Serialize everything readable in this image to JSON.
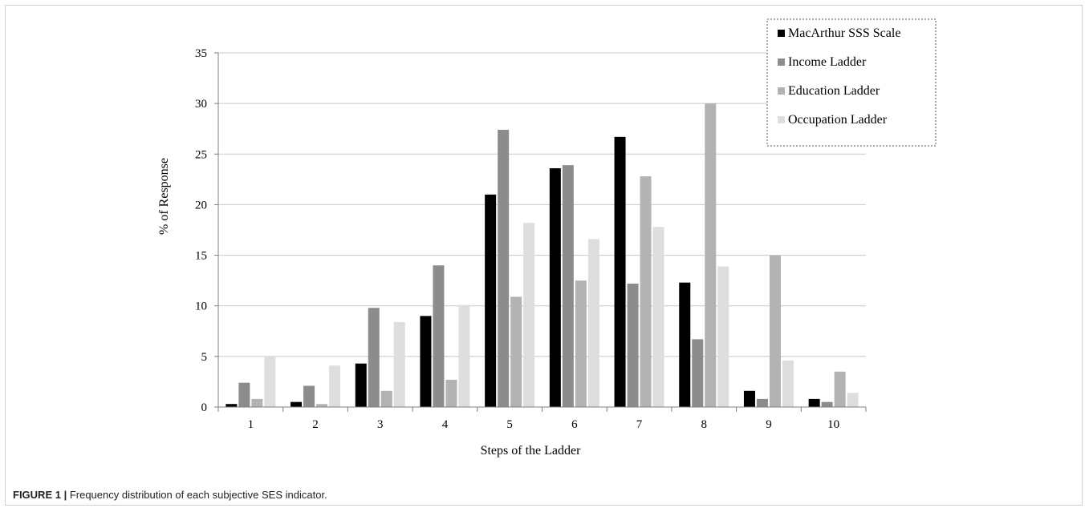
{
  "caption": {
    "label": "FIGURE 1 |",
    "text": "Frequency distribution of each subjective SES indicator."
  },
  "chart_data": {
    "type": "bar",
    "title": "",
    "xlabel": "Steps of the Ladder",
    "ylabel": "% of Response",
    "ylim": [
      0,
      35
    ],
    "yticks": [
      0,
      5,
      10,
      15,
      20,
      25,
      30,
      35
    ],
    "grid": true,
    "legend_position": "top-right",
    "categories": [
      "1",
      "2",
      "3",
      "4",
      "5",
      "6",
      "7",
      "8",
      "9",
      "10"
    ],
    "series": [
      {
        "name": "MacArthur SSS Scale",
        "color": "#000000",
        "values": [
          0.3,
          0.5,
          4.3,
          9.0,
          21.0,
          23.6,
          26.7,
          12.3,
          1.6,
          0.8
        ]
      },
      {
        "name": "Income Ladder",
        "color": "#8c8c8c",
        "values": [
          2.4,
          2.1,
          9.8,
          14.0,
          27.4,
          23.9,
          12.2,
          6.7,
          0.8,
          0.5
        ]
      },
      {
        "name": "Education Ladder",
        "color": "#b3b3b3",
        "values": [
          0.8,
          0.3,
          1.6,
          2.7,
          10.9,
          12.5,
          22.8,
          30.0,
          15.0,
          3.5
        ]
      },
      {
        "name": "Occupation Ladder",
        "color": "#dedede",
        "values": [
          5.0,
          4.1,
          8.4,
          10.1,
          18.2,
          16.6,
          17.8,
          13.9,
          4.6,
          1.4
        ]
      }
    ]
  }
}
